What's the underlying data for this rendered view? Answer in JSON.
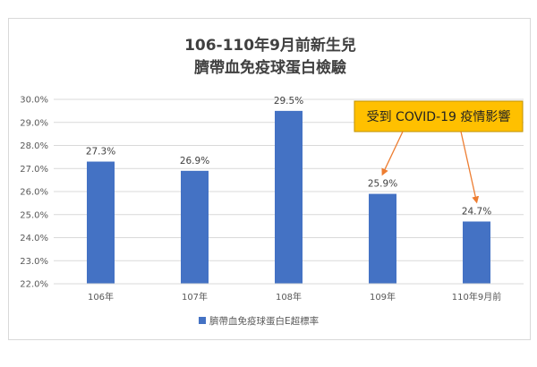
{
  "chart_data": {
    "type": "bar",
    "title_line1": "106-110年9月前新生兒",
    "title_line2": "臍帶血免疫球蛋白檢驗",
    "categories": [
      "106年",
      "107年",
      "108年",
      "109年",
      "110年9月前"
    ],
    "series": [
      {
        "name": "臍帶血免疫球蛋白E超標率",
        "values": [
          27.3,
          26.9,
          29.5,
          25.9,
          24.7
        ],
        "color": "#4472c4"
      }
    ],
    "data_labels": [
      "27.3%",
      "26.9%",
      "29.5%",
      "25.9%",
      "24.7%"
    ],
    "y_ticks": [
      "22.0%",
      "23.0%",
      "24.0%",
      "25.0%",
      "26.0%",
      "27.0%",
      "28.0%",
      "29.0%",
      "30.0%"
    ],
    "ylim": [
      22,
      30
    ],
    "grid": true,
    "legend_position": "bottom",
    "annotation": {
      "text": "受到 COVID-19 疫情影響",
      "points_to": [
        "109年",
        "110年9月前"
      ],
      "box_color": "#ffc000",
      "arrow_color": "#ed7d31"
    }
  }
}
